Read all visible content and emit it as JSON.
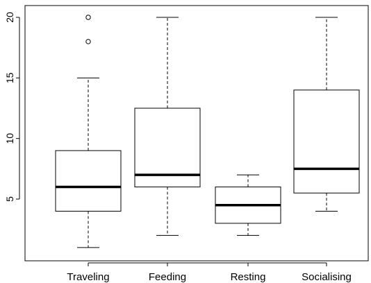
{
  "chart_data": {
    "type": "boxplot",
    "title": "",
    "xlabel": "",
    "ylabel": "",
    "ylim": [
      0,
      20.6
    ],
    "y_ticks": [
      5,
      10,
      15,
      20
    ],
    "categories": [
      "Traveling",
      "Feeding",
      "Resting",
      "Socialising"
    ],
    "boxes": [
      {
        "category": "Traveling",
        "whisker_low": 1,
        "q1": 4,
        "median": 6,
        "q3": 9,
        "whisker_high": 15,
        "outliers": [
          18,
          20
        ]
      },
      {
        "category": "Feeding",
        "whisker_low": 2,
        "q1": 6,
        "median": 7,
        "q3": 12.5,
        "whisker_high": 20,
        "outliers": []
      },
      {
        "category": "Resting",
        "whisker_low": 2,
        "q1": 3,
        "median": 4.5,
        "q3": 6,
        "whisker_high": 7,
        "outliers": []
      },
      {
        "category": "Socialising",
        "whisker_low": 4,
        "q1": 5.5,
        "median": 7.5,
        "q3": 14,
        "whisker_high": 20,
        "outliers": []
      }
    ],
    "grid": false,
    "legend": "none"
  }
}
